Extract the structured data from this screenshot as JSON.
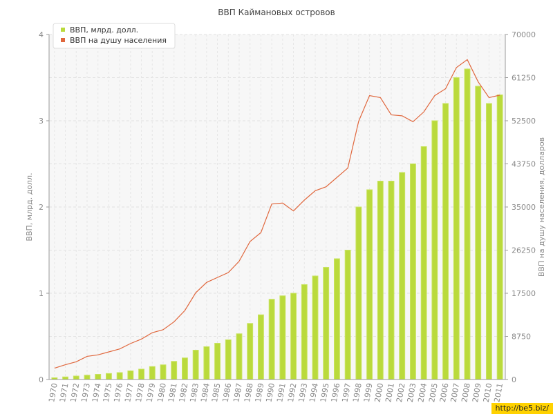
{
  "chart_data": {
    "type": "bar",
    "title": "ВВП Каймановых островов",
    "x": [
      "1970",
      "1971",
      "1972",
      "1973",
      "1974",
      "1975",
      "1976",
      "1977",
      "1978",
      "1979",
      "1980",
      "1981",
      "1982",
      "1983",
      "1984",
      "1985",
      "1986",
      "1987",
      "1988",
      "1989",
      "1990",
      "1991",
      "1992",
      "1993",
      "1994",
      "1995",
      "1996",
      "1997",
      "1998",
      "1999",
      "2000",
      "2001",
      "2002",
      "2003",
      "2004",
      "2005",
      "2006",
      "2007",
      "2008",
      "2009",
      "2010",
      "2011"
    ],
    "series": [
      {
        "name": "ВВП, млрд. долл.",
        "type": "bar",
        "axis": "left",
        "values": [
          0.02,
          0.03,
          0.04,
          0.05,
          0.06,
          0.07,
          0.08,
          0.1,
          0.12,
          0.15,
          0.17,
          0.21,
          0.25,
          0.34,
          0.38,
          0.42,
          0.46,
          0.53,
          0.65,
          0.75,
          0.93,
          0.97,
          1.0,
          1.1,
          1.2,
          1.3,
          1.4,
          1.5,
          2.0,
          2.2,
          2.3,
          2.3,
          2.4,
          2.5,
          2.7,
          3.0,
          3.2,
          3.5,
          3.6,
          3.4,
          3.2,
          3.3
        ]
      },
      {
        "name": "ВВП на душу населения",
        "type": "line",
        "axis": "right",
        "values": [
          2300,
          3000,
          3600,
          4700,
          5000,
          5600,
          6200,
          7300,
          8200,
          9500,
          10100,
          11700,
          14000,
          17600,
          19700,
          20700,
          21700,
          24000,
          28000,
          29800,
          35600,
          35800,
          34200,
          36400,
          38300,
          39100,
          41000,
          42900,
          52400,
          57600,
          57200,
          53700,
          53500,
          52300,
          54300,
          57600,
          59000,
          63300,
          64900,
          60400,
          57200,
          57700
        ]
      }
    ],
    "yleft": {
      "label": "ВВП, млрд. долл.",
      "ylim": [
        0,
        4
      ],
      "ticks": [
        "0",
        "1",
        "2",
        "3",
        "4"
      ]
    },
    "yright": {
      "label": "ВВП на душу населения, долларов",
      "ylim": [
        0,
        70000
      ],
      "ticks": [
        "0",
        "8750",
        "17500",
        "26250",
        "35000",
        "43750",
        "52500",
        "61250",
        "70000"
      ]
    },
    "grid": true,
    "legend": "top-left",
    "colors": {
      "bar": "#bada3c",
      "bar_stroke": "#c9e460",
      "line": "#e0673d",
      "watermark_bg": "#ffd200"
    }
  },
  "watermark": "http://be5.biz/"
}
